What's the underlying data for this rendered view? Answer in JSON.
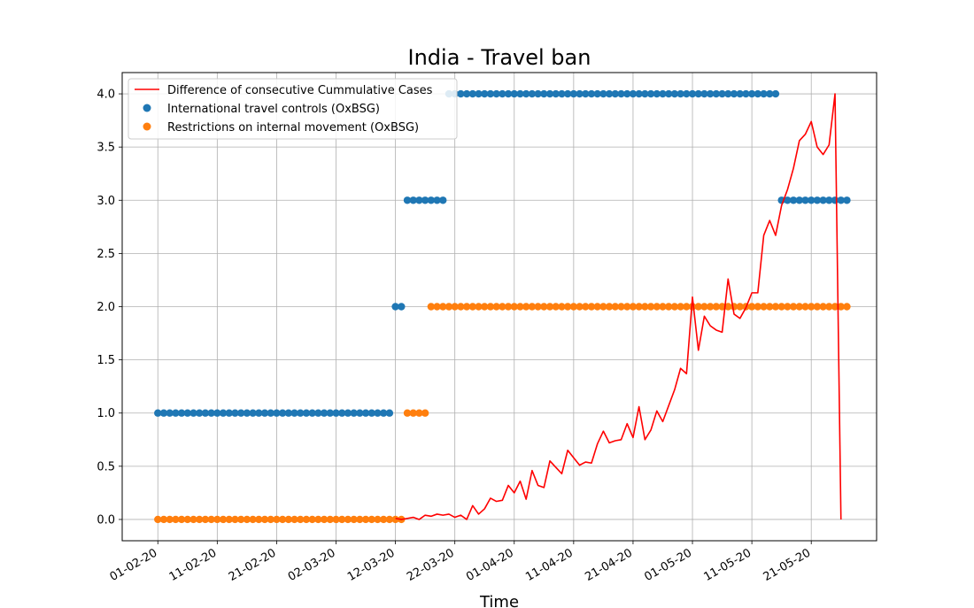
{
  "chart_data": {
    "type": "line",
    "title": "India - Travel ban",
    "xlabel": "Time",
    "ylabel": "",
    "ylim": [
      -0.2,
      4.2
    ],
    "xlim": [
      "26-01-20",
      "01-06-20"
    ],
    "x_ticks": [
      "01-02-20",
      "11-02-20",
      "21-02-20",
      "02-03-20",
      "12-03-20",
      "22-03-20",
      "01-04-20",
      "11-04-20",
      "21-04-20",
      "01-05-20",
      "11-05-20",
      "21-05-20"
    ],
    "y_ticks": [
      "0.0",
      "0.5",
      "1.0",
      "1.5",
      "2.0",
      "2.5",
      "3.0",
      "3.5",
      "4.0"
    ],
    "grid": true,
    "legend_position": "top-left",
    "series": [
      {
        "name": "Difference of consecutive Cummulative Cases",
        "kind": "line",
        "color": "#ff0000",
        "x_start": "12-03-20",
        "values": [
          0.01,
          0.0,
          0.01,
          0.02,
          0.0,
          0.04,
          0.03,
          0.05,
          0.04,
          0.05,
          0.02,
          0.04,
          0.0,
          0.13,
          0.05,
          0.1,
          0.2,
          0.17,
          0.18,
          0.32,
          0.25,
          0.36,
          0.19,
          0.46,
          0.32,
          0.3,
          0.55,
          0.49,
          0.43,
          0.65,
          0.58,
          0.51,
          0.54,
          0.53,
          0.71,
          0.83,
          0.72,
          0.74,
          0.75,
          0.9,
          0.77,
          1.06,
          0.75,
          0.84,
          1.02,
          0.92,
          1.07,
          1.22,
          1.42,
          1.37,
          2.09,
          1.59,
          1.91,
          1.82,
          1.78,
          1.76,
          2.26,
          1.93,
          1.89,
          1.99,
          2.13,
          2.13,
          2.67,
          2.81,
          2.67,
          2.95,
          3.1,
          3.3,
          3.56,
          3.62,
          3.74,
          3.5,
          3.43,
          3.52,
          4.0,
          0.0
        ]
      },
      {
        "name": "International travel controls (OxBSG)",
        "kind": "points",
        "color": "#1f77b4",
        "segments": [
          {
            "start": "01-02-20",
            "end": "11-03-20",
            "value": 1.0
          },
          {
            "start": "12-03-20",
            "end": "13-03-20",
            "value": 2.0
          },
          {
            "start": "14-03-20",
            "end": "20-03-20",
            "value": 3.0
          },
          {
            "start": "21-03-20",
            "end": "15-05-20",
            "value": 4.0
          },
          {
            "start": "16-05-20",
            "end": "27-05-20",
            "value": 3.0
          }
        ]
      },
      {
        "name": "Restrictions on internal movement (OxBSG)",
        "kind": "points",
        "color": "#ff7f0e",
        "segments": [
          {
            "start": "01-02-20",
            "end": "13-03-20",
            "value": 0.0
          },
          {
            "start": "14-03-20",
            "end": "17-03-20",
            "value": 1.0
          },
          {
            "start": "18-03-20",
            "end": "27-05-20",
            "value": 2.0
          }
        ]
      }
    ]
  }
}
